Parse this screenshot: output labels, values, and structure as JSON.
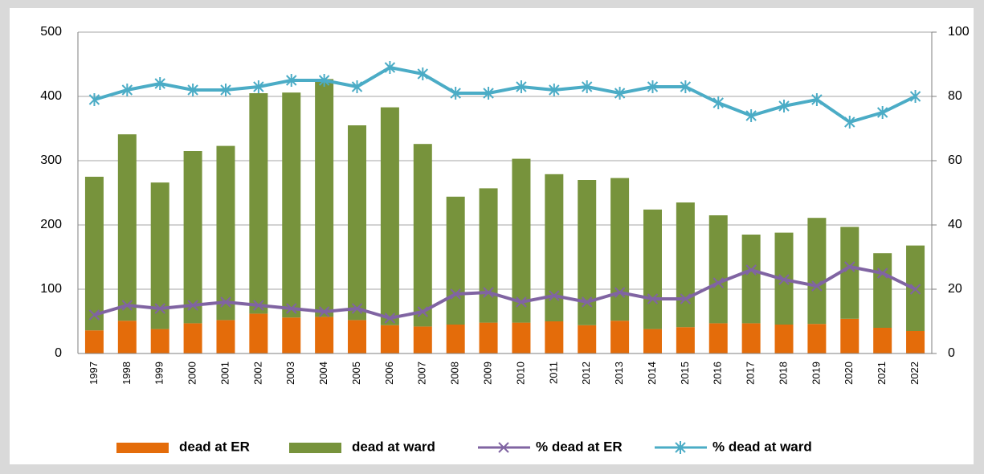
{
  "chart_data": {
    "type": "bar-line",
    "categories": [
      "1997",
      "1998",
      "1999",
      "2000",
      "2001",
      "2002",
      "2003",
      "2004",
      "2005",
      "2006",
      "2007",
      "2008",
      "2009",
      "2010",
      "2011",
      "2012",
      "2013",
      "2014",
      "2015",
      "2016",
      "2017",
      "2018",
      "2019",
      "2020",
      "2021",
      "2022"
    ],
    "series": [
      {
        "name": "dead at ER",
        "type": "bar",
        "color": "#e46c0a",
        "values": [
          36,
          51,
          38,
          47,
          52,
          62,
          56,
          57,
          52,
          44,
          42,
          45,
          48,
          48,
          50,
          44,
          51,
          38,
          41,
          47,
          47,
          45,
          46,
          54,
          40,
          35
        ]
      },
      {
        "name": "dead at ward",
        "type": "bar",
        "color": "#77933c",
        "values": [
          239,
          290,
          228,
          268,
          271,
          343,
          350,
          370,
          303,
          339,
          284,
          199,
          209,
          255,
          229,
          226,
          222,
          186,
          194,
          168,
          138,
          143,
          165,
          143,
          116,
          133
        ]
      },
      {
        "name": "% dead at ER",
        "type": "line",
        "axis": "y2",
        "marker": "x",
        "color": "#8064a2",
        "values": [
          12,
          15,
          14,
          15,
          16,
          15,
          14,
          13,
          14,
          11,
          13,
          18.5,
          19,
          16,
          18,
          16,
          19,
          17,
          17,
          22,
          26,
          23,
          21,
          27,
          25,
          20
        ]
      },
      {
        "name": "% dead at ward",
        "type": "line",
        "axis": "y2",
        "marker": "star",
        "color": "#4bacc6",
        "values": [
          79,
          82,
          84,
          82,
          82,
          83,
          85,
          85,
          83,
          89,
          87,
          81,
          81,
          83,
          82,
          83,
          81,
          83,
          83,
          78,
          74,
          77,
          79,
          72,
          75,
          80
        ]
      }
    ],
    "ylim": [
      0,
      500
    ],
    "yticks": [
      0,
      100,
      200,
      300,
      400,
      500
    ],
    "y2lim": [
      0,
      100
    ],
    "y2ticks": [
      0,
      20,
      40,
      60,
      80,
      100
    ],
    "grid": true,
    "legend": "bottom",
    "stacked": true
  }
}
